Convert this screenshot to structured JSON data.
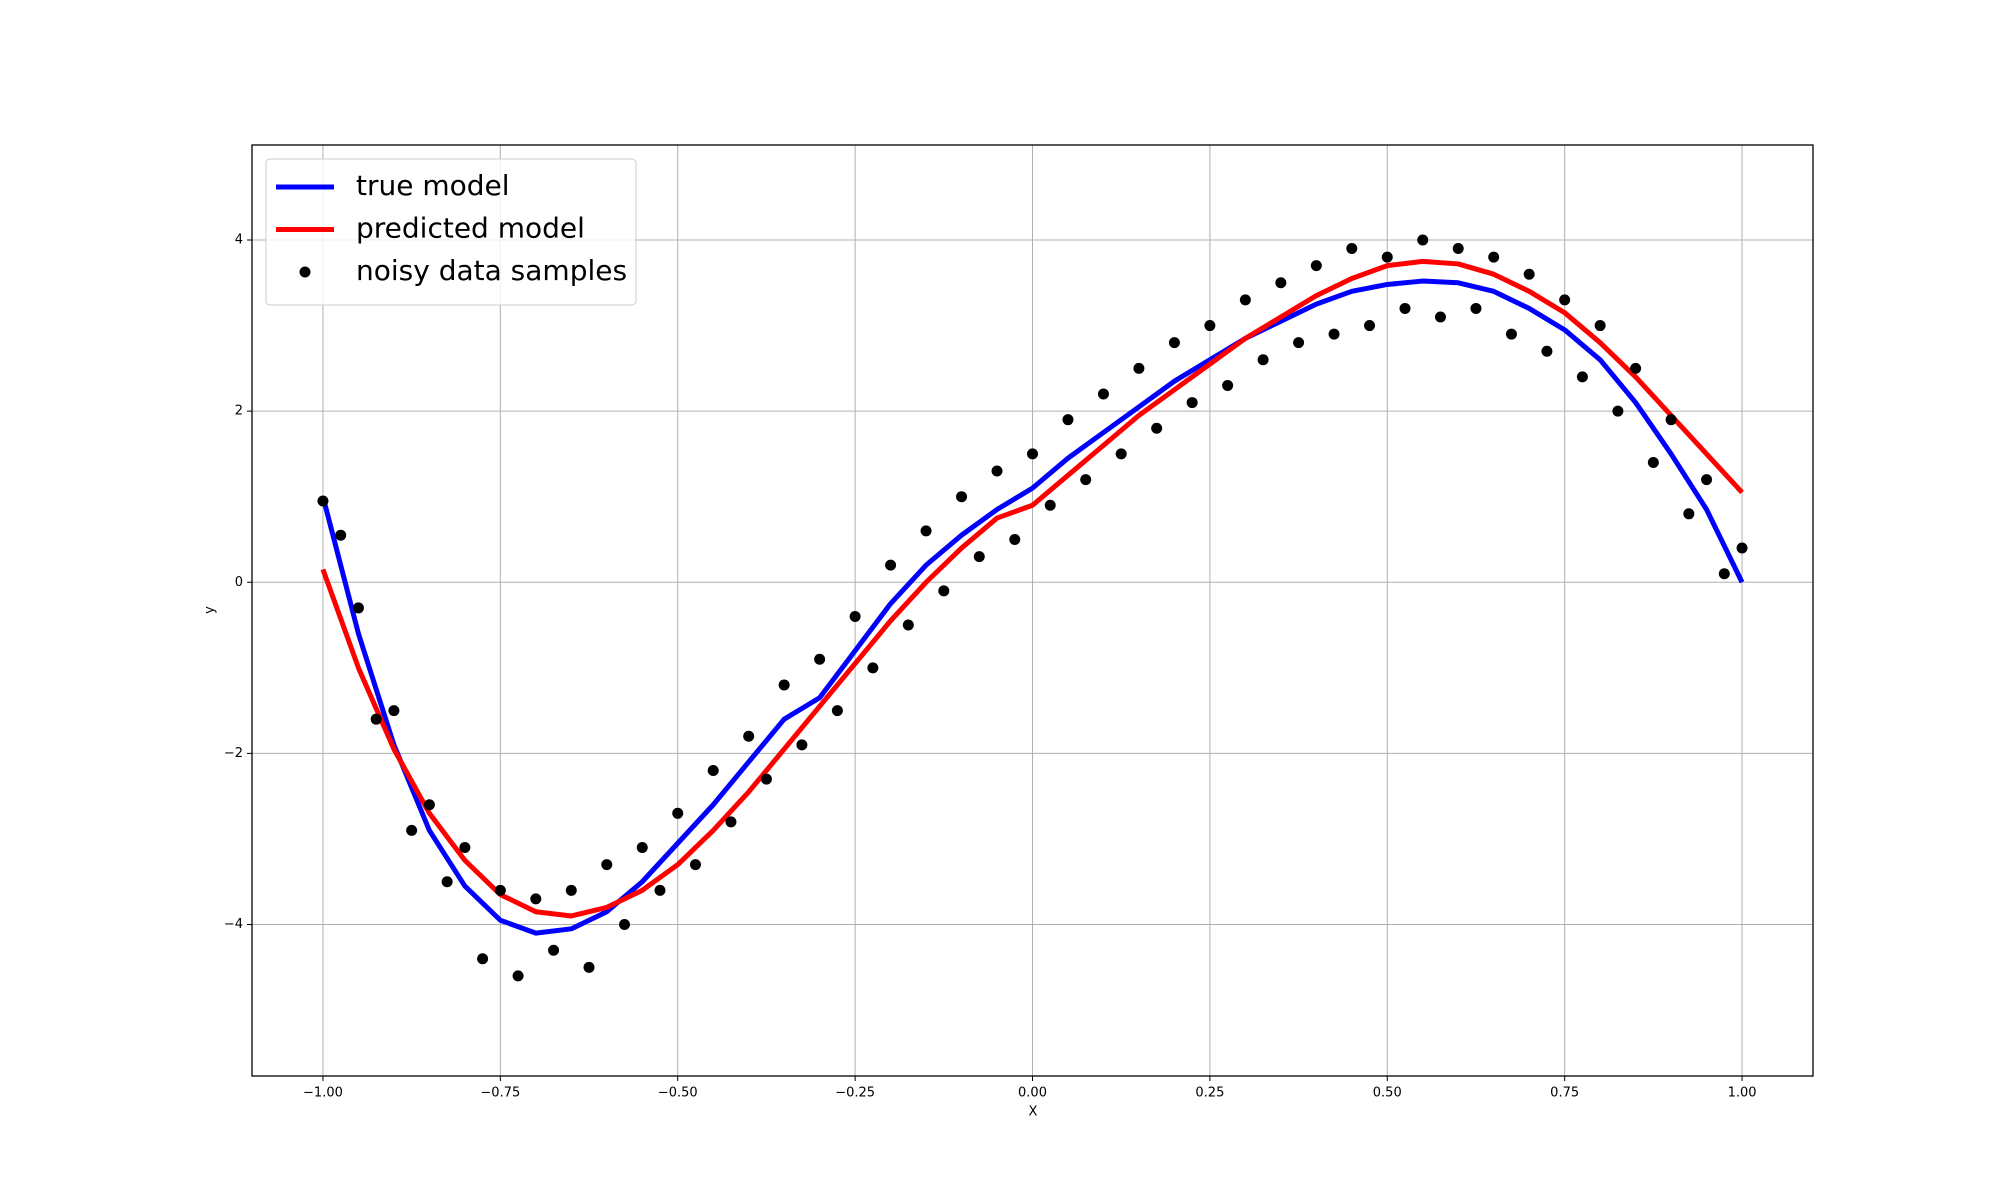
{
  "chart_data": {
    "type": "scatter",
    "xlabel": "X",
    "ylabel": "y",
    "xlim": [
      -1.1,
      1.1
    ],
    "ylim": [
      -5.77,
      5.11
    ],
    "xticks": [
      {
        "value": -1,
        "label": "−1.00"
      },
      {
        "value": -0.75,
        "label": "−0.75"
      },
      {
        "value": -0.5,
        "label": "−0.50"
      },
      {
        "value": -0.25,
        "label": "−0.25"
      },
      {
        "value": 0,
        "label": "0.00"
      },
      {
        "value": 0.25,
        "label": "0.25"
      },
      {
        "value": 0.5,
        "label": "0.50"
      },
      {
        "value": 0.75,
        "label": "0.75"
      },
      {
        "value": 1,
        "label": "1.00"
      }
    ],
    "yticks": [
      {
        "value": -4,
        "label": "−4"
      },
      {
        "value": -2,
        "label": "−2"
      },
      0,
      2,
      4
    ],
    "grid": true,
    "legend": "upper-left",
    "series": [
      {
        "name": "true model",
        "type": "line",
        "color": "#0000ff",
        "x": [
          -1,
          -0.95,
          -0.9,
          -0.85,
          -0.8,
          -0.75,
          -0.7,
          -0.65,
          -0.6,
          -0.55,
          -0.5,
          -0.45,
          -0.4,
          -0.35,
          -0.3,
          -0.25,
          -0.2,
          -0.15,
          -0.1,
          -0.05,
          0,
          0.05,
          0.1,
          0.15,
          0.2,
          0.25,
          0.3,
          0.35,
          0.4,
          0.45,
          0.5,
          0.55,
          0.6,
          0.65,
          0.7,
          0.75,
          0.8,
          0.85,
          0.9,
          0.95,
          1
        ],
        "values": [
          1.0,
          -0.6,
          -1.9,
          -2.9,
          -3.55,
          -3.95,
          -4.1,
          -4.05,
          -3.85,
          -3.5,
          -3.05,
          -2.6,
          -2.1,
          -1.6,
          -1.35,
          -0.8,
          -0.25,
          0.2,
          0.55,
          0.85,
          1.1,
          1.45,
          1.75,
          2.05,
          2.35,
          2.6,
          2.85,
          3.05,
          3.25,
          3.4,
          3.48,
          3.52,
          3.5,
          3.4,
          3.2,
          2.95,
          2.6,
          2.1,
          1.5,
          0.85,
          0.0
        ]
      },
      {
        "name": "predicted model",
        "type": "line",
        "color": "#ff0000",
        "x": [
          -1,
          -0.95,
          -0.9,
          -0.85,
          -0.8,
          -0.75,
          -0.7,
          -0.65,
          -0.6,
          -0.55,
          -0.5,
          -0.45,
          -0.4,
          -0.35,
          -0.3,
          -0.25,
          -0.2,
          -0.15,
          -0.1,
          -0.05,
          0,
          0.05,
          0.1,
          0.15,
          0.2,
          0.25,
          0.3,
          0.35,
          0.4,
          0.45,
          0.5,
          0.55,
          0.6,
          0.65,
          0.7,
          0.75,
          0.8,
          0.85,
          0.9,
          0.95,
          1
        ],
        "values": [
          0.15,
          -1.0,
          -1.95,
          -2.7,
          -3.25,
          -3.65,
          -3.85,
          -3.9,
          -3.8,
          -3.6,
          -3.3,
          -2.9,
          -2.45,
          -1.95,
          -1.45,
          -0.95,
          -0.45,
          0.0,
          0.4,
          0.75,
          0.9,
          1.25,
          1.6,
          1.95,
          2.25,
          2.55,
          2.85,
          3.1,
          3.35,
          3.55,
          3.7,
          3.75,
          3.72,
          3.6,
          3.4,
          3.15,
          2.8,
          2.4,
          1.95,
          1.5,
          1.05
        ]
      },
      {
        "name": "noisy data samples",
        "type": "scatter",
        "color": "#000000",
        "x": [
          -1,
          -0.975,
          -0.95,
          -0.925,
          -0.9,
          -0.875,
          -0.85,
          -0.825,
          -0.8,
          -0.775,
          -0.75,
          -0.725,
          -0.7,
          -0.675,
          -0.65,
          -0.625,
          -0.6,
          -0.575,
          -0.55,
          -0.525,
          -0.5,
          -0.475,
          -0.45,
          -0.425,
          -0.4,
          -0.375,
          -0.35,
          -0.325,
          -0.3,
          -0.275,
          -0.25,
          -0.225,
          -0.2,
          -0.175,
          -0.15,
          -0.125,
          -0.1,
          -0.075,
          -0.05,
          -0.025,
          0,
          0.025,
          0.05,
          0.075,
          0.1,
          0.125,
          0.15,
          0.175,
          0.2,
          0.225,
          0.25,
          0.275,
          0.3,
          0.325,
          0.35,
          0.375,
          0.4,
          0.425,
          0.45,
          0.475,
          0.5,
          0.525,
          0.55,
          0.575,
          0.6,
          0.625,
          0.65,
          0.675,
          0.7,
          0.725,
          0.75,
          0.775,
          0.8,
          0.825,
          0.85,
          0.875,
          0.9,
          0.925,
          0.95,
          0.975,
          1
        ],
        "values": [
          0.95,
          0.55,
          -0.3,
          -1.6,
          -1.5,
          -2.9,
          -2.6,
          -3.5,
          -3.1,
          -4.4,
          -3.6,
          -4.6,
          -3.7,
          -4.3,
          -3.6,
          -4.5,
          -3.3,
          -4.0,
          -3.1,
          -3.6,
          -2.7,
          -3.3,
          -2.2,
          -2.8,
          -1.8,
          -2.3,
          -1.2,
          -1.9,
          -0.9,
          -1.5,
          -0.4,
          -1.0,
          0.2,
          -0.5,
          0.6,
          -0.1,
          1.0,
          0.3,
          1.3,
          0.5,
          1.5,
          0.9,
          1.9,
          1.2,
          2.2,
          1.5,
          2.5,
          1.8,
          2.8,
          2.1,
          3.0,
          2.3,
          3.3,
          2.6,
          3.5,
          2.8,
          3.7,
          2.9,
          3.9,
          3.0,
          3.8,
          3.2,
          4.0,
          3.1,
          3.9,
          3.2,
          3.8,
          2.9,
          3.6,
          2.7,
          3.3,
          2.4,
          3.0,
          2.0,
          2.5,
          1.4,
          1.9,
          0.8,
          1.2,
          0.1,
          0.4
        ]
      }
    ]
  }
}
